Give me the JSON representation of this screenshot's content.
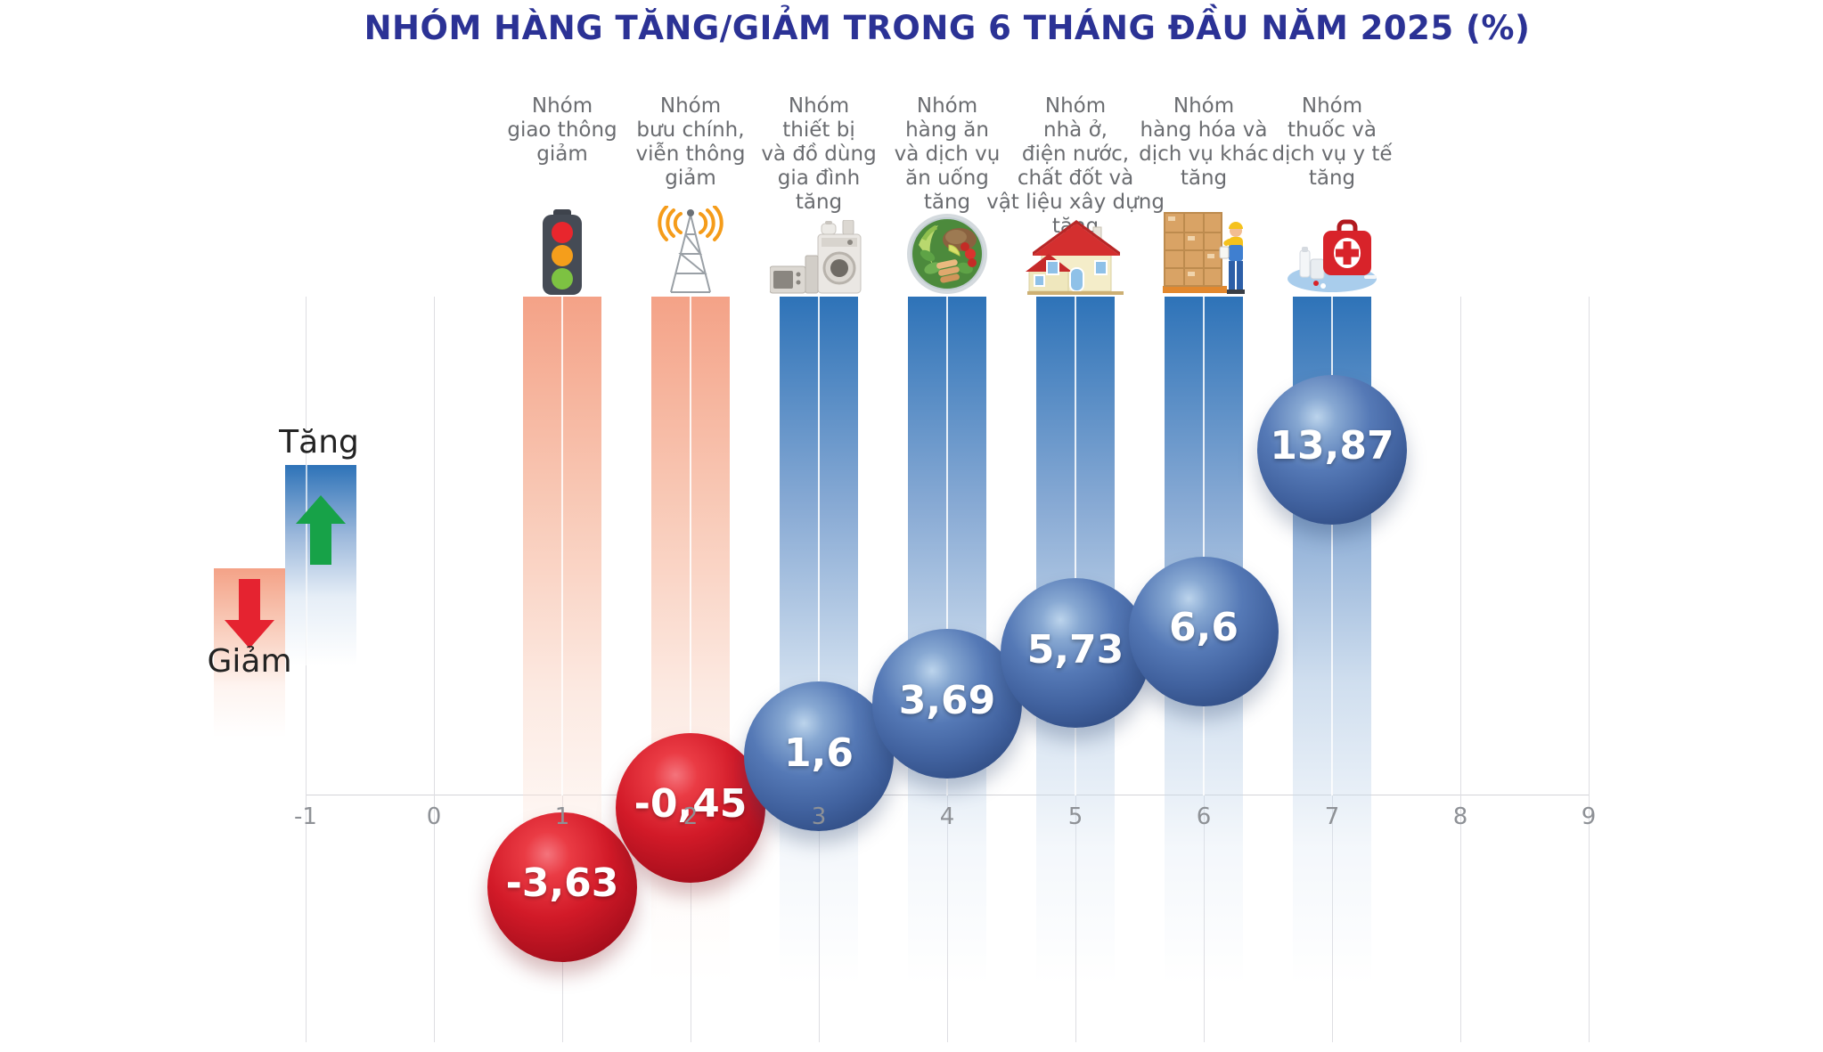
{
  "title": "NHÓM HÀNG TĂNG/GIẢM TRONG 6 THÁNG ĐẦU NĂM 2025 (%)",
  "legend": {
    "increase_label": "Tăng",
    "decrease_label": "Giảm"
  },
  "x_axis": {
    "tick_labels": [
      "-1",
      "0",
      "1",
      "2",
      "3",
      "4",
      "5",
      "6",
      "7",
      "8",
      "9"
    ]
  },
  "chart_data": {
    "type": "bar",
    "title": "NHÓM HÀNG TĂNG/GIẢM TRONG 6 THÁNG ĐẦU NĂM 2025 (%)",
    "unit": "%",
    "xlim": [
      -1,
      9
    ],
    "x_positions": [
      1,
      2,
      3,
      4,
      5,
      6,
      7
    ],
    "categories": [
      "Nhóm\ngiao thông\ngiảm",
      "Nhóm\nbưu chính,\nviễn thông\ngiảm",
      "Nhóm\nthiết bị\nvà đồ dùng\ngia đình\ntăng",
      "Nhóm\nhàng ăn\nvà dịch vụ\năn uống\ntăng",
      "Nhóm\nnhà ở,\nđiện nước,\nchất đốt và\nvật liệu xây dựng\ntăng",
      "Nhóm\nhàng hóa và\ndịch vụ khác\ntăng",
      "Nhóm\nthuốc và\ndịch vụ y tế\ntăng"
    ],
    "values": [
      -3.63,
      -0.45,
      1.6,
      3.69,
      5.73,
      6.6,
      13.87
    ],
    "value_labels": [
      "-3,63",
      "-0,45",
      "1,6",
      "3,69",
      "5,73",
      "6,6",
      "13,87"
    ],
    "directions": [
      "decrease",
      "decrease",
      "increase",
      "increase",
      "increase",
      "increase",
      "increase"
    ],
    "icons": [
      "traffic-light",
      "radio-tower",
      "home-appliances",
      "food-bowl",
      "house",
      "goods-worker",
      "first-aid-kit"
    ],
    "colors": {
      "column_increase_top": "#2e73b8",
      "column_decrease_top": "#f4a287",
      "sphere_increase": "#4a72b2",
      "sphere_decrease": "#cf1f2e",
      "title_text": "#2b3295",
      "category_text": "#6a6c70",
      "tick_text": "#8e9196",
      "arrow_up": "#17a248",
      "arrow_down": "#e52330"
    },
    "legend_position": "left"
  }
}
